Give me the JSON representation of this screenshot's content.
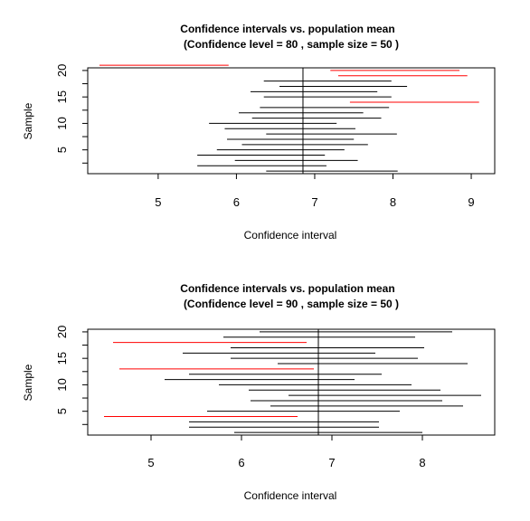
{
  "chart_data": [
    {
      "type": "interval",
      "title": "Confidence intervals vs. population mean",
      "subtitle": "(Confidence level = 80 , sample size = 50  )",
      "xlabel": "Confidence interval",
      "ylabel": "Sample",
      "xlim": [
        4.1,
        9.3
      ],
      "ylim": [
        0.5,
        20.5
      ],
      "xticks": [
        5,
        6,
        7,
        8,
        9
      ],
      "yticks": [
        5,
        10,
        15,
        20
      ],
      "population_mean": 6.85,
      "colors": {
        "covers": "#000000",
        "misses": "#ff0000"
      },
      "intervals": [
        {
          "sample": 1,
          "lower": 6.38,
          "upper": 8.06,
          "covers": true
        },
        {
          "sample": 2,
          "lower": 5.5,
          "upper": 7.15,
          "covers": true
        },
        {
          "sample": 3,
          "lower": 5.98,
          "upper": 7.55,
          "covers": true
        },
        {
          "sample": 4,
          "lower": 5.5,
          "upper": 7.13,
          "covers": true
        },
        {
          "sample": 5,
          "lower": 5.75,
          "upper": 7.38,
          "covers": true
        },
        {
          "sample": 6,
          "lower": 6.07,
          "upper": 7.68,
          "covers": true
        },
        {
          "sample": 7,
          "lower": 5.88,
          "upper": 7.5,
          "covers": true
        },
        {
          "sample": 8,
          "lower": 6.38,
          "upper": 8.05,
          "covers": true
        },
        {
          "sample": 9,
          "lower": 5.85,
          "upper": 7.52,
          "covers": true
        },
        {
          "sample": 10,
          "lower": 5.65,
          "upper": 7.28,
          "covers": true
        },
        {
          "sample": 11,
          "lower": 6.2,
          "upper": 7.85,
          "covers": true
        },
        {
          "sample": 12,
          "lower": 6.03,
          "upper": 7.62,
          "covers": true
        },
        {
          "sample": 13,
          "lower": 6.3,
          "upper": 7.95,
          "covers": true
        },
        {
          "sample": 14,
          "lower": 7.45,
          "upper": 9.1,
          "covers": false
        },
        {
          "sample": 15,
          "lower": 6.35,
          "upper": 7.98,
          "covers": true
        },
        {
          "sample": 16,
          "lower": 6.18,
          "upper": 7.8,
          "covers": true
        },
        {
          "sample": 17,
          "lower": 6.55,
          "upper": 8.18,
          "covers": true
        },
        {
          "sample": 18,
          "lower": 6.35,
          "upper": 7.98,
          "covers": true
        },
        {
          "sample": 19,
          "lower": 7.3,
          "upper": 8.95,
          "covers": false
        },
        {
          "sample": 20,
          "lower": 7.2,
          "upper": 8.85,
          "covers": false
        },
        {
          "sample": 21,
          "lower": 4.25,
          "upper": 5.9,
          "covers": false
        }
      ]
    },
    {
      "type": "interval",
      "title": "Confidence intervals vs. population mean",
      "subtitle": "(Confidence level = 90 , sample size = 50  )",
      "xlabel": "Confidence interval",
      "ylabel": "Sample",
      "xlim": [
        4.3,
        8.8
      ],
      "ylim": [
        0.5,
        20.5
      ],
      "xticks": [
        5,
        6,
        7,
        8
      ],
      "yticks": [
        5,
        10,
        15,
        20
      ],
      "population_mean": 6.85,
      "colors": {
        "covers": "#000000",
        "misses": "#ff0000"
      },
      "intervals": [
        {
          "sample": 1,
          "lower": 5.92,
          "upper": 8.0,
          "covers": true
        },
        {
          "sample": 2,
          "lower": 5.42,
          "upper": 7.52,
          "covers": true
        },
        {
          "sample": 3,
          "lower": 5.42,
          "upper": 7.52,
          "covers": true
        },
        {
          "sample": 4,
          "lower": 4.48,
          "upper": 6.62,
          "covers": false
        },
        {
          "sample": 5,
          "lower": 5.62,
          "upper": 7.75,
          "covers": true
        },
        {
          "sample": 6,
          "lower": 6.32,
          "upper": 8.45,
          "covers": true
        },
        {
          "sample": 7,
          "lower": 6.1,
          "upper": 8.22,
          "covers": true
        },
        {
          "sample": 8,
          "lower": 6.52,
          "upper": 8.65,
          "covers": true
        },
        {
          "sample": 9,
          "lower": 6.08,
          "upper": 8.2,
          "covers": true
        },
        {
          "sample": 10,
          "lower": 5.75,
          "upper": 7.88,
          "covers": true
        },
        {
          "sample": 11,
          "lower": 5.15,
          "upper": 7.25,
          "covers": true
        },
        {
          "sample": 12,
          "lower": 5.42,
          "upper": 7.55,
          "covers": true
        },
        {
          "sample": 13,
          "lower": 4.65,
          "upper": 6.8,
          "covers": false
        },
        {
          "sample": 14,
          "lower": 6.4,
          "upper": 8.5,
          "covers": true
        },
        {
          "sample": 15,
          "lower": 5.88,
          "upper": 7.95,
          "covers": true
        },
        {
          "sample": 16,
          "lower": 5.35,
          "upper": 7.48,
          "covers": true
        },
        {
          "sample": 17,
          "lower": 5.88,
          "upper": 8.02,
          "covers": true
        },
        {
          "sample": 18,
          "lower": 4.58,
          "upper": 6.72,
          "covers": false
        },
        {
          "sample": 19,
          "lower": 5.8,
          "upper": 7.92,
          "covers": true
        },
        {
          "sample": 20,
          "lower": 6.2,
          "upper": 8.33,
          "covers": true
        }
      ]
    }
  ]
}
